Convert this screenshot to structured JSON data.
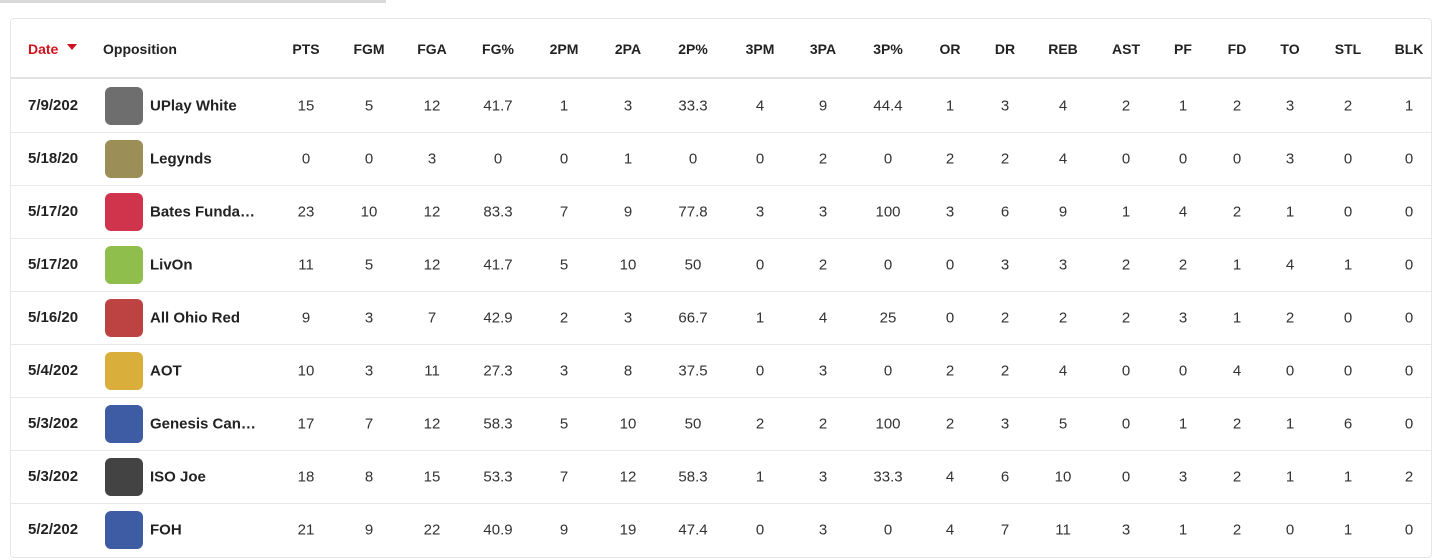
{
  "table": {
    "header": {
      "date": "Date",
      "opposition": "Opposition",
      "stats": [
        "PTS",
        "FGM",
        "FGA",
        "FG%",
        "2PM",
        "2PA",
        "2P%",
        "3PM",
        "3PA",
        "3P%",
        "OR",
        "DR",
        "REB",
        "AST",
        "PF",
        "FD",
        "TO",
        "STL",
        "BLK"
      ]
    },
    "rows": [
      {
        "date": "7/9/202",
        "opposition": "UPlay White",
        "stats": [
          15,
          5,
          12,
          41.7,
          1,
          3,
          33.3,
          4,
          9,
          44.4,
          1,
          3,
          4,
          2,
          1,
          2,
          3,
          2,
          1
        ]
      },
      {
        "date": "5/18/20",
        "opposition": "Legynds",
        "stats": [
          0,
          0,
          3,
          0,
          0,
          1,
          0,
          0,
          2,
          0,
          2,
          2,
          4,
          0,
          0,
          0,
          3,
          0,
          0
        ]
      },
      {
        "date": "5/17/20",
        "opposition": "Bates Funda…",
        "stats": [
          23,
          10,
          12,
          83.3,
          7,
          9,
          77.8,
          3,
          3,
          100,
          3,
          6,
          9,
          1,
          4,
          2,
          1,
          0,
          0
        ]
      },
      {
        "date": "5/17/20",
        "opposition": "LivOn",
        "stats": [
          11,
          5,
          12,
          41.7,
          5,
          10,
          50,
          0,
          2,
          0,
          0,
          3,
          3,
          2,
          2,
          1,
          4,
          1,
          0
        ]
      },
      {
        "date": "5/16/20",
        "opposition": "All Ohio Red",
        "stats": [
          9,
          3,
          7,
          42.9,
          2,
          3,
          66.7,
          1,
          4,
          25,
          0,
          2,
          2,
          2,
          3,
          1,
          2,
          0,
          0
        ]
      },
      {
        "date": "5/4/202",
        "opposition": "AOT",
        "stats": [
          10,
          3,
          11,
          27.3,
          3,
          8,
          37.5,
          0,
          3,
          0,
          2,
          2,
          4,
          0,
          0,
          4,
          0,
          0,
          0
        ]
      },
      {
        "date": "5/3/202",
        "opposition": "Genesis Can…",
        "stats": [
          17,
          7,
          12,
          58.3,
          5,
          10,
          50,
          2,
          2,
          100,
          2,
          3,
          5,
          0,
          1,
          2,
          1,
          6,
          0
        ]
      },
      {
        "date": "5/3/202",
        "opposition": "ISO Joe",
        "stats": [
          18,
          8,
          15,
          53.3,
          7,
          12,
          58.3,
          1,
          3,
          33.3,
          4,
          6,
          10,
          0,
          3,
          2,
          1,
          1,
          2
        ]
      },
      {
        "date": "5/2/202",
        "opposition": "FOH",
        "stats": [
          21,
          9,
          22,
          40.9,
          9,
          19,
          47.4,
          0,
          3,
          0,
          4,
          7,
          11,
          3,
          1,
          2,
          0,
          1,
          0
        ]
      }
    ]
  }
}
